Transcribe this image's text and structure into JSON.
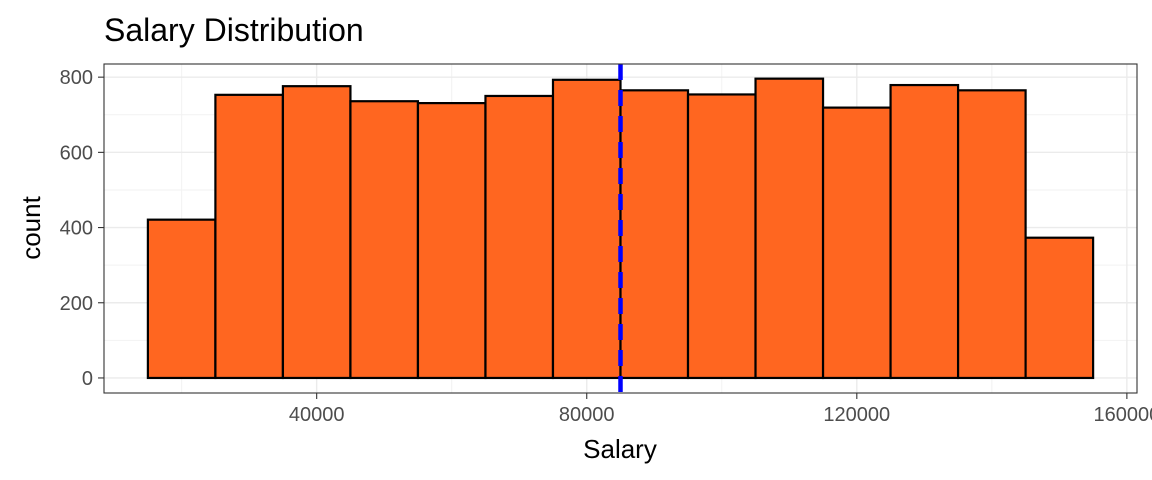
{
  "chart_data": {
    "type": "bar",
    "title": "Salary Distribution",
    "xlabel": "Salary",
    "ylabel": "count",
    "bin_width": 10000,
    "bins": [
      {
        "start": 15000,
        "end": 25000,
        "count": 421
      },
      {
        "start": 25000,
        "end": 35000,
        "count": 753
      },
      {
        "start": 35000,
        "end": 45000,
        "count": 776
      },
      {
        "start": 45000,
        "end": 55000,
        "count": 736
      },
      {
        "start": 55000,
        "end": 65000,
        "count": 731
      },
      {
        "start": 65000,
        "end": 75000,
        "count": 750
      },
      {
        "start": 75000,
        "end": 85000,
        "count": 793
      },
      {
        "start": 85000,
        "end": 95000,
        "count": 765
      },
      {
        "start": 95000,
        "end": 105000,
        "count": 754
      },
      {
        "start": 105000,
        "end": 115000,
        "count": 796
      },
      {
        "start": 115000,
        "end": 125000,
        "count": 719
      },
      {
        "start": 125000,
        "end": 135000,
        "count": 779
      },
      {
        "start": 135000,
        "end": 145000,
        "count": 765
      },
      {
        "start": 145000,
        "end": 155000,
        "count": 373
      }
    ],
    "mean_line": {
      "x": 85000,
      "color": "#0000ff",
      "style": "dashed"
    },
    "xlim": [
      8500,
      161500
    ],
    "ylim": [
      -40,
      835
    ],
    "x_ticks": [
      40000,
      80000,
      120000,
      160000
    ],
    "x_tick_labels": [
      "40000",
      "80000",
      "120000",
      "160000"
    ],
    "y_ticks": [
      0,
      200,
      400,
      600,
      800
    ],
    "y_tick_labels": [
      "0",
      "200",
      "400",
      "600",
      "800"
    ],
    "bar_color": "#ff6620",
    "bar_outline": "#000000",
    "grid": true,
    "theme": "bw"
  }
}
